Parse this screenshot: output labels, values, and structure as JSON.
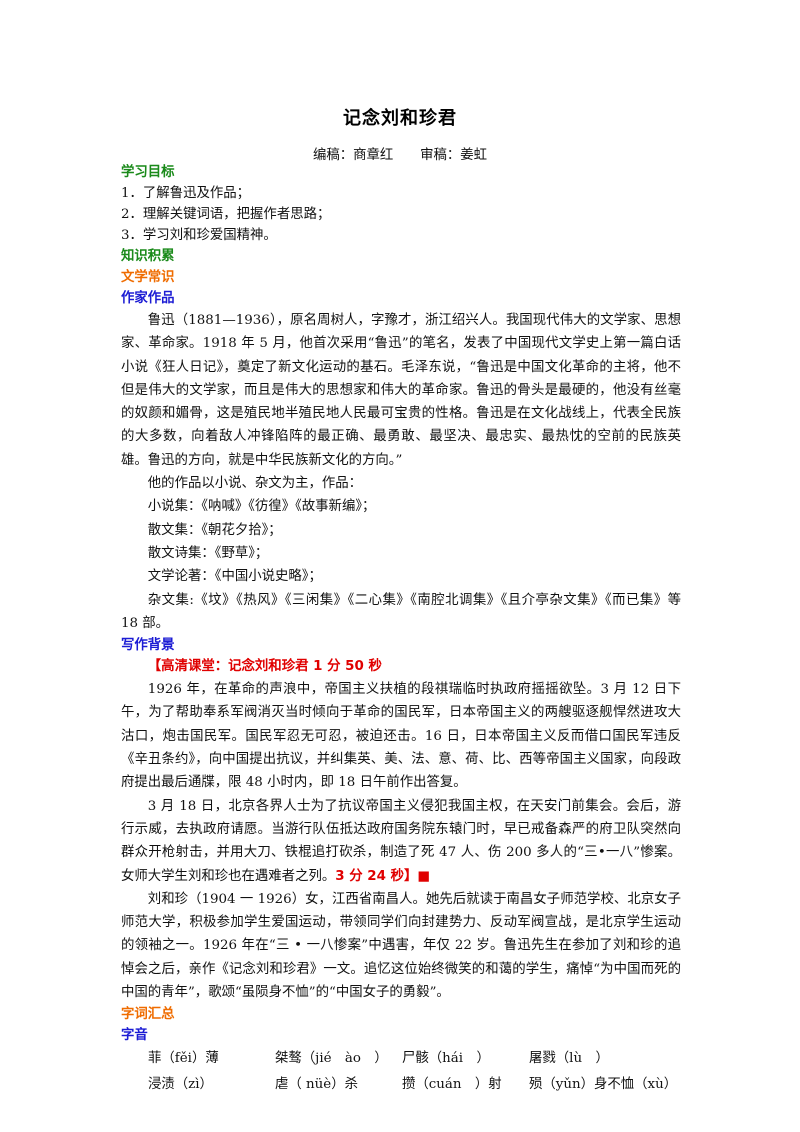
{
  "title": "记念刘和珍君",
  "editors": "编稿：商章红　　审稿：姜虹",
  "sections": {
    "objectives_heading": "学习目标",
    "objectives": [
      "1．了解鲁迅及作品；",
      "2．理解关键词语，把握作者思路；",
      "3．学习刘和珍爱国精神。"
    ],
    "knowledge_heading": "知识积累",
    "literary_heading": "文学常识",
    "author_heading": "作家作品",
    "author_paragraph": "鲁迅（1881—1936），原名周树人，字豫才，浙江绍兴人。我国现代伟大的文学家、思想家、革命家。1918 年 5 月，他首次采用“鲁迅”的笔名，发表了中国现代文学史上第一篇白话小说《狂人日记》，奠定了新文化运动的基石。毛泽东说，“鲁迅是中国文化革命的主将，他不但是伟大的文学家，而且是伟大的思想家和伟大的革命家。鲁迅的骨头是最硬的，他没有丝毫的奴颜和媚骨，这是殖民地半殖民地人民最可宝贵的性格。鲁迅是在文化战线上，代表全民族的大多数，向着敌人冲锋陷阵的最正确、最勇敢、最坚决、最忠实、最热忱的空前的民族英雄。鲁迅的方向，就是中华民族新文化的方向。”",
    "works_intro": "他的作品以小说、杂文为主，作品：",
    "works": [
      "小说集：《呐喊》《彷徨》《故事新编》；",
      "散文集：《朝花夕拾》；",
      "散文诗集：《野草》；",
      "文学论著：《中国小说史略》；",
      "杂文集:《坟》《热风》《三闲集》《二心集》《南腔北调集》《且介亭杂文集》《而已集》等 18 部。"
    ],
    "background_heading": "写作背景",
    "video_label": "【高清课堂：记念刘和珍君 1 分 50 秒",
    "background_p1": "1926 年，在革命的声浪中，帝国主义扶植的段祺瑞临时执政府摇摇欲坠。3 月 12 日下午，为了帮助奉系军阀消灭当时倾向于革命的国民军，日本帝国主义的两艘驱逐舰悍然进攻大沽口，炮击国民军。国民军忍无可忍，被迫还击。16 日，日本帝国主义反而借口国民军违反《辛丑条约》，向中国提出抗议，并纠集英、美、法、意、荷、比、西等帝国主义国家，向段政府提出最后通牒，限 48 小时内，即 18 日午前作出答复。",
    "background_p2": "3 月 18 日，北京各界人士为了抗议帝国主义侵犯我国主权，在天安门前集会。会后，游行示威，去执政府请愿。当游行队伍抵达政府国务院东辕门时，早已戒备森严的府卫队突然向群众开枪射击，并用大刀、铁棍追打砍杀，制造了死 47 人、伤 200 多人的“三•一八”惨案。女师大学生刘和珍也在遇难者之列。",
    "video_end": "3 分 24 秒】■",
    "background_p3": "刘和珍（1904 一 1926）女，江西省南昌人。她先后就读于南昌女子师范学校、北京女子师范大学，积极参加学生爱国运动，带领同学们向封建势力、反动军阀宣战，是北京学生运动的领袖之一。1926 年在“三 • 一八惨案”中遇害，年仅 22 岁。鲁迅先生在参加了刘和珍的追悼会之后，亲作《记念刘和珍君》一文。追忆这位始终微笑的和蔼的学生，痛悼“为中国而死的中国的青年”，歌颂“虽陨身不恤”的“中国女子的勇毅”。",
    "vocab_heading": "字词汇总",
    "pronunciation_heading": "字音",
    "pronunciation": [
      [
        "菲（fěi）薄",
        "桀骜（jié　ào　）",
        "尸骸（hái　）",
        "屠戮（lù　）"
      ],
      [
        "浸渍（zì）",
        "虐（ nüè）杀",
        "攒（cuán　）射",
        "殒（yǔn）身不恤（xù）"
      ]
    ]
  },
  "colors": {
    "heading_green": "#1a8a1a",
    "heading_orange": "#ef6c00",
    "heading_blue": "#1c1cd4",
    "highlight_red": "#e00000"
  }
}
